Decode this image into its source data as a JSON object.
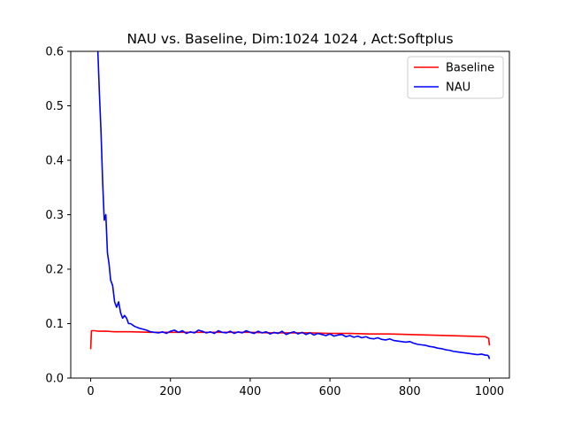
{
  "chart_data": {
    "type": "line",
    "title": "NAU vs. Baseline, Dim:1024 1024 , Act:Softplus",
    "xlabel": "",
    "ylabel": "",
    "xlim": [
      -50,
      1050
    ],
    "ylim": [
      0.0,
      0.6
    ],
    "xticks": [
      0,
      200,
      400,
      600,
      800,
      1000
    ],
    "yticks": [
      0.0,
      0.1,
      0.2,
      0.3,
      0.4,
      0.5,
      0.6
    ],
    "xtick_labels": [
      "0",
      "200",
      "400",
      "600",
      "800",
      "1000"
    ],
    "ytick_labels": [
      "0.0",
      "0.1",
      "0.2",
      "0.3",
      "0.4",
      "0.5",
      "0.6"
    ],
    "grid": false,
    "legend_position": "upper-right",
    "series": [
      {
        "name": "Baseline",
        "color": "#ff0000",
        "x": [
          0,
          2,
          10,
          20,
          40,
          60,
          80,
          100,
          150,
          200,
          250,
          300,
          350,
          400,
          450,
          500,
          550,
          600,
          650,
          700,
          750,
          800,
          850,
          900,
          950,
          990,
          995,
          998,
          1000
        ],
        "y": [
          0.053,
          0.087,
          0.087,
          0.086,
          0.086,
          0.085,
          0.085,
          0.085,
          0.084,
          0.084,
          0.084,
          0.084,
          0.084,
          0.084,
          0.083,
          0.083,
          0.083,
          0.082,
          0.082,
          0.081,
          0.081,
          0.08,
          0.079,
          0.078,
          0.077,
          0.076,
          0.074,
          0.073,
          0.06
        ]
      },
      {
        "name": "NAU",
        "color": "#0000ff",
        "x": [
          18,
          22,
          26,
          30,
          34,
          38,
          42,
          46,
          50,
          55,
          60,
          65,
          70,
          75,
          80,
          85,
          90,
          95,
          100,
          110,
          120,
          130,
          140,
          150,
          160,
          170,
          180,
          190,
          200,
          210,
          220,
          230,
          240,
          250,
          260,
          270,
          280,
          290,
          300,
          310,
          320,
          330,
          340,
          350,
          360,
          370,
          380,
          390,
          400,
          410,
          420,
          430,
          440,
          450,
          460,
          470,
          480,
          490,
          500,
          510,
          520,
          530,
          540,
          550,
          560,
          570,
          580,
          590,
          600,
          610,
          620,
          630,
          640,
          650,
          660,
          670,
          680,
          690,
          700,
          710,
          720,
          730,
          740,
          750,
          760,
          770,
          780,
          790,
          800,
          810,
          820,
          830,
          840,
          850,
          860,
          870,
          880,
          890,
          900,
          910,
          920,
          930,
          940,
          950,
          960,
          970,
          980,
          990,
          995,
          998,
          1000
        ],
        "y": [
          0.6,
          0.52,
          0.45,
          0.36,
          0.29,
          0.3,
          0.23,
          0.21,
          0.18,
          0.17,
          0.14,
          0.13,
          0.14,
          0.12,
          0.11,
          0.115,
          0.11,
          0.1,
          0.1,
          0.095,
          0.092,
          0.09,
          0.088,
          0.085,
          0.084,
          0.083,
          0.085,
          0.082,
          0.086,
          0.088,
          0.084,
          0.087,
          0.082,
          0.085,
          0.083,
          0.088,
          0.086,
          0.083,
          0.085,
          0.082,
          0.087,
          0.084,
          0.083,
          0.086,
          0.082,
          0.085,
          0.083,
          0.087,
          0.084,
          0.082,
          0.086,
          0.083,
          0.085,
          0.081,
          0.084,
          0.082,
          0.086,
          0.08,
          0.083,
          0.085,
          0.081,
          0.084,
          0.08,
          0.083,
          0.079,
          0.082,
          0.08,
          0.078,
          0.081,
          0.077,
          0.079,
          0.08,
          0.076,
          0.078,
          0.075,
          0.077,
          0.074,
          0.076,
          0.073,
          0.072,
          0.074,
          0.071,
          0.07,
          0.072,
          0.069,
          0.068,
          0.067,
          0.066,
          0.067,
          0.064,
          0.062,
          0.061,
          0.06,
          0.058,
          0.057,
          0.055,
          0.054,
          0.052,
          0.051,
          0.049,
          0.048,
          0.047,
          0.046,
          0.045,
          0.044,
          0.043,
          0.044,
          0.042,
          0.042,
          0.04,
          0.035
        ]
      }
    ]
  }
}
